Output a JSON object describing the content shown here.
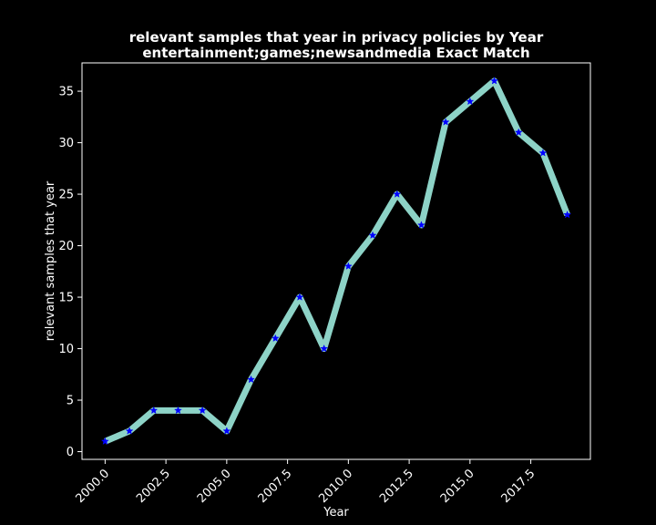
{
  "chart_data": {
    "type": "line",
    "title_line1": "relevant samples that year in privacy policies by Year",
    "title_line2": "entertainment;games;newsandmedia Exact Match",
    "xlabel": "Year",
    "ylabel": "relevant samples that year",
    "x": [
      2000,
      2001,
      2002,
      2003,
      2004,
      2005,
      2006,
      2007,
      2008,
      2009,
      2010,
      2011,
      2012,
      2013,
      2014,
      2015,
      2016,
      2017,
      2018,
      2019
    ],
    "series": [
      {
        "values": [
          1,
          2,
          4,
          4,
          4,
          2,
          7,
          11,
          15,
          10,
          18,
          21,
          25,
          22,
          32,
          34,
          36,
          31,
          29,
          23
        ]
      }
    ],
    "xlim": [
      1999.05,
      2019.95
    ],
    "ylim": [
      -0.75,
      37.75
    ],
    "xticks": [
      2000.0,
      2002.5,
      2005.0,
      2007.5,
      2010.0,
      2012.5,
      2015.0,
      2017.5
    ],
    "xtick_labels": [
      "2000.0",
      "2002.5",
      "2005.0",
      "2007.5",
      "2010.0",
      "2012.5",
      "2015.0",
      "2017.5"
    ],
    "yticks": [
      0,
      5,
      10,
      15,
      20,
      25,
      30,
      35
    ],
    "ytick_labels": [
      "0",
      "5",
      "10",
      "15",
      "20",
      "25",
      "30",
      "35"
    ],
    "grid": false,
    "colors": {
      "background": "#000000",
      "line": "#8dd3c7",
      "marker": "#0000ff",
      "axis": "#ffffff"
    },
    "marker": "star"
  }
}
